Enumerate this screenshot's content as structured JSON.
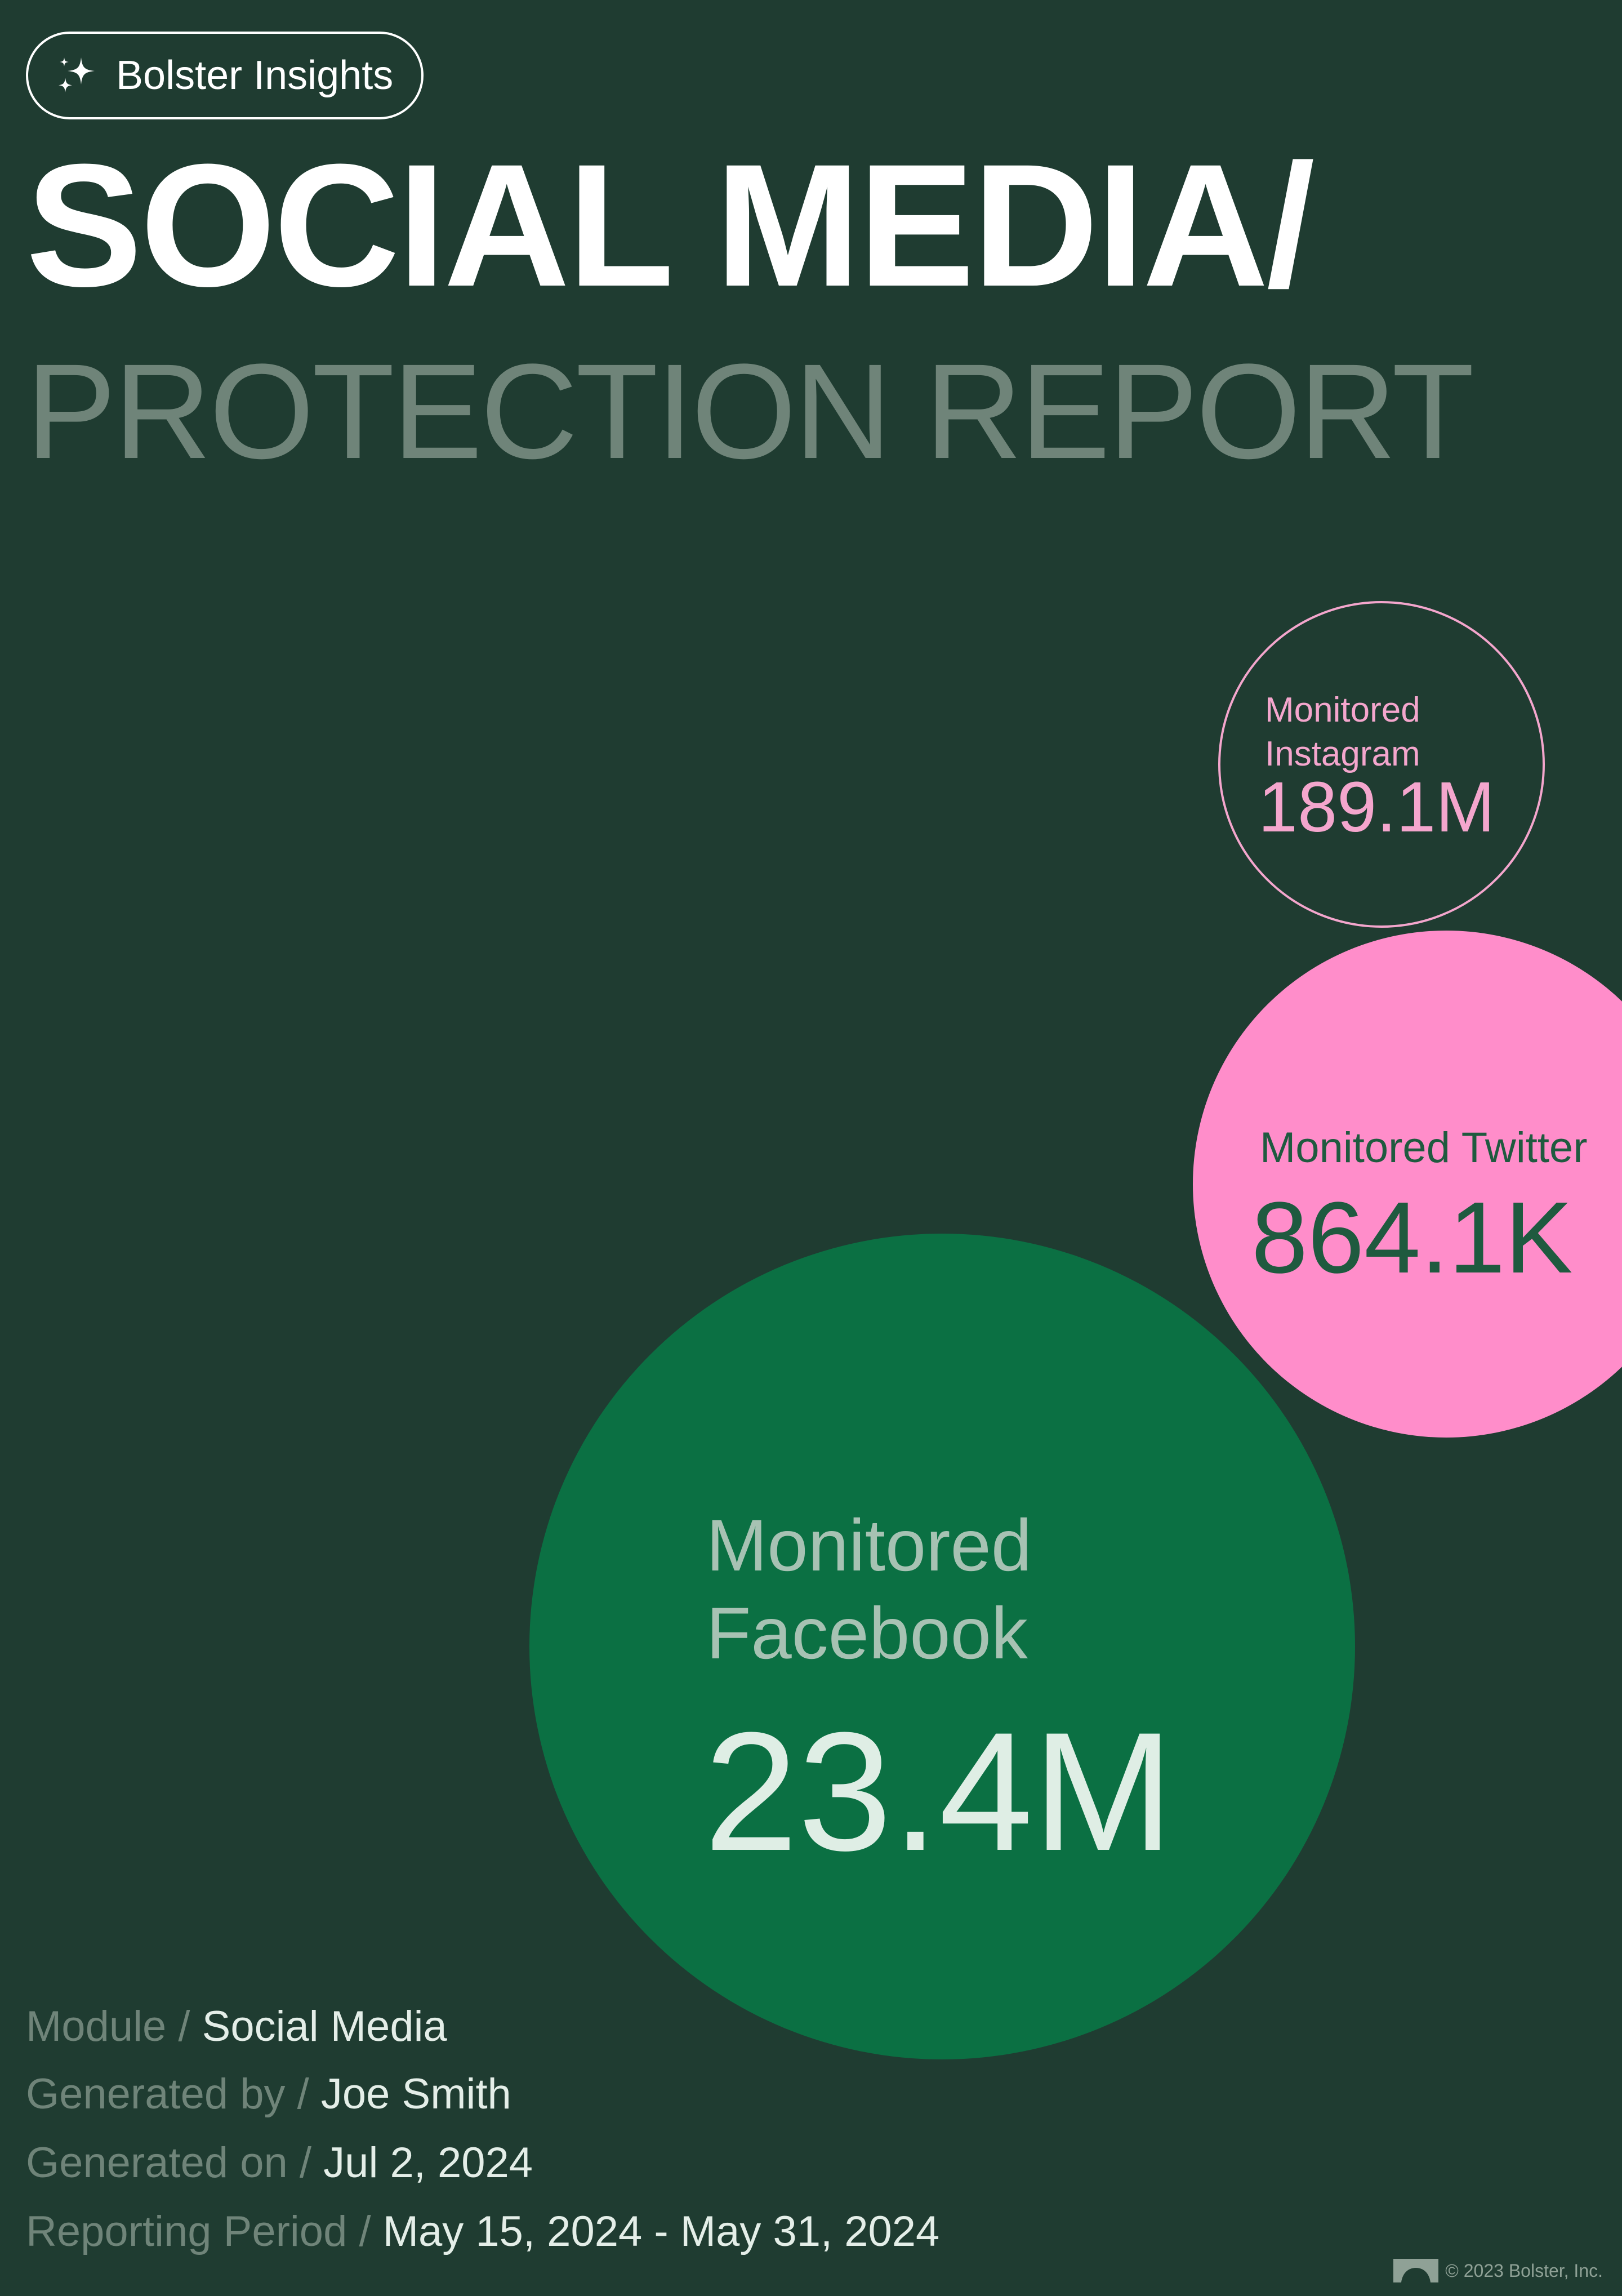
{
  "badge": {
    "label": "Bolster Insights",
    "icon": "sparkle-icon"
  },
  "title": {
    "line1": "SOCIAL MEDIA/",
    "line2": "PROTECTION REPORT"
  },
  "metrics": {
    "instagram": {
      "label_line1": "Monitored",
      "label_line2": "Instagram",
      "value": "189.1M"
    },
    "twitter": {
      "label": "Monitored Twitter",
      "value": "864.1K"
    },
    "facebook": {
      "label_line1": "Monitored",
      "label_line2": "Facebook",
      "value": "23.4M"
    }
  },
  "meta": {
    "separator": "/",
    "module": {
      "label": "Module",
      "value": "Social Media"
    },
    "generated_by": {
      "label": "Generated by",
      "value": "Joe Smith"
    },
    "generated_on": {
      "label": "Generated on",
      "value": "Jul 2, 2024"
    },
    "reporting_period": {
      "label": "Reporting Period",
      "value": "May 15, 2024 - May 31, 2024"
    }
  },
  "footer": {
    "copyright": "© 2023 Bolster, Inc.",
    "icon": "bolster-logo-icon"
  },
  "colors": {
    "background": "#1f3c31",
    "title_primary": "#ffffff",
    "title_secondary": "#6f8479",
    "instagram": "#f4a6cd",
    "twitter": "#ff8dca",
    "twitter_text": "#1f5a3f",
    "facebook": "#0b7043",
    "facebook_label": "#a7c2b3",
    "facebook_value": "#dfeee5"
  }
}
